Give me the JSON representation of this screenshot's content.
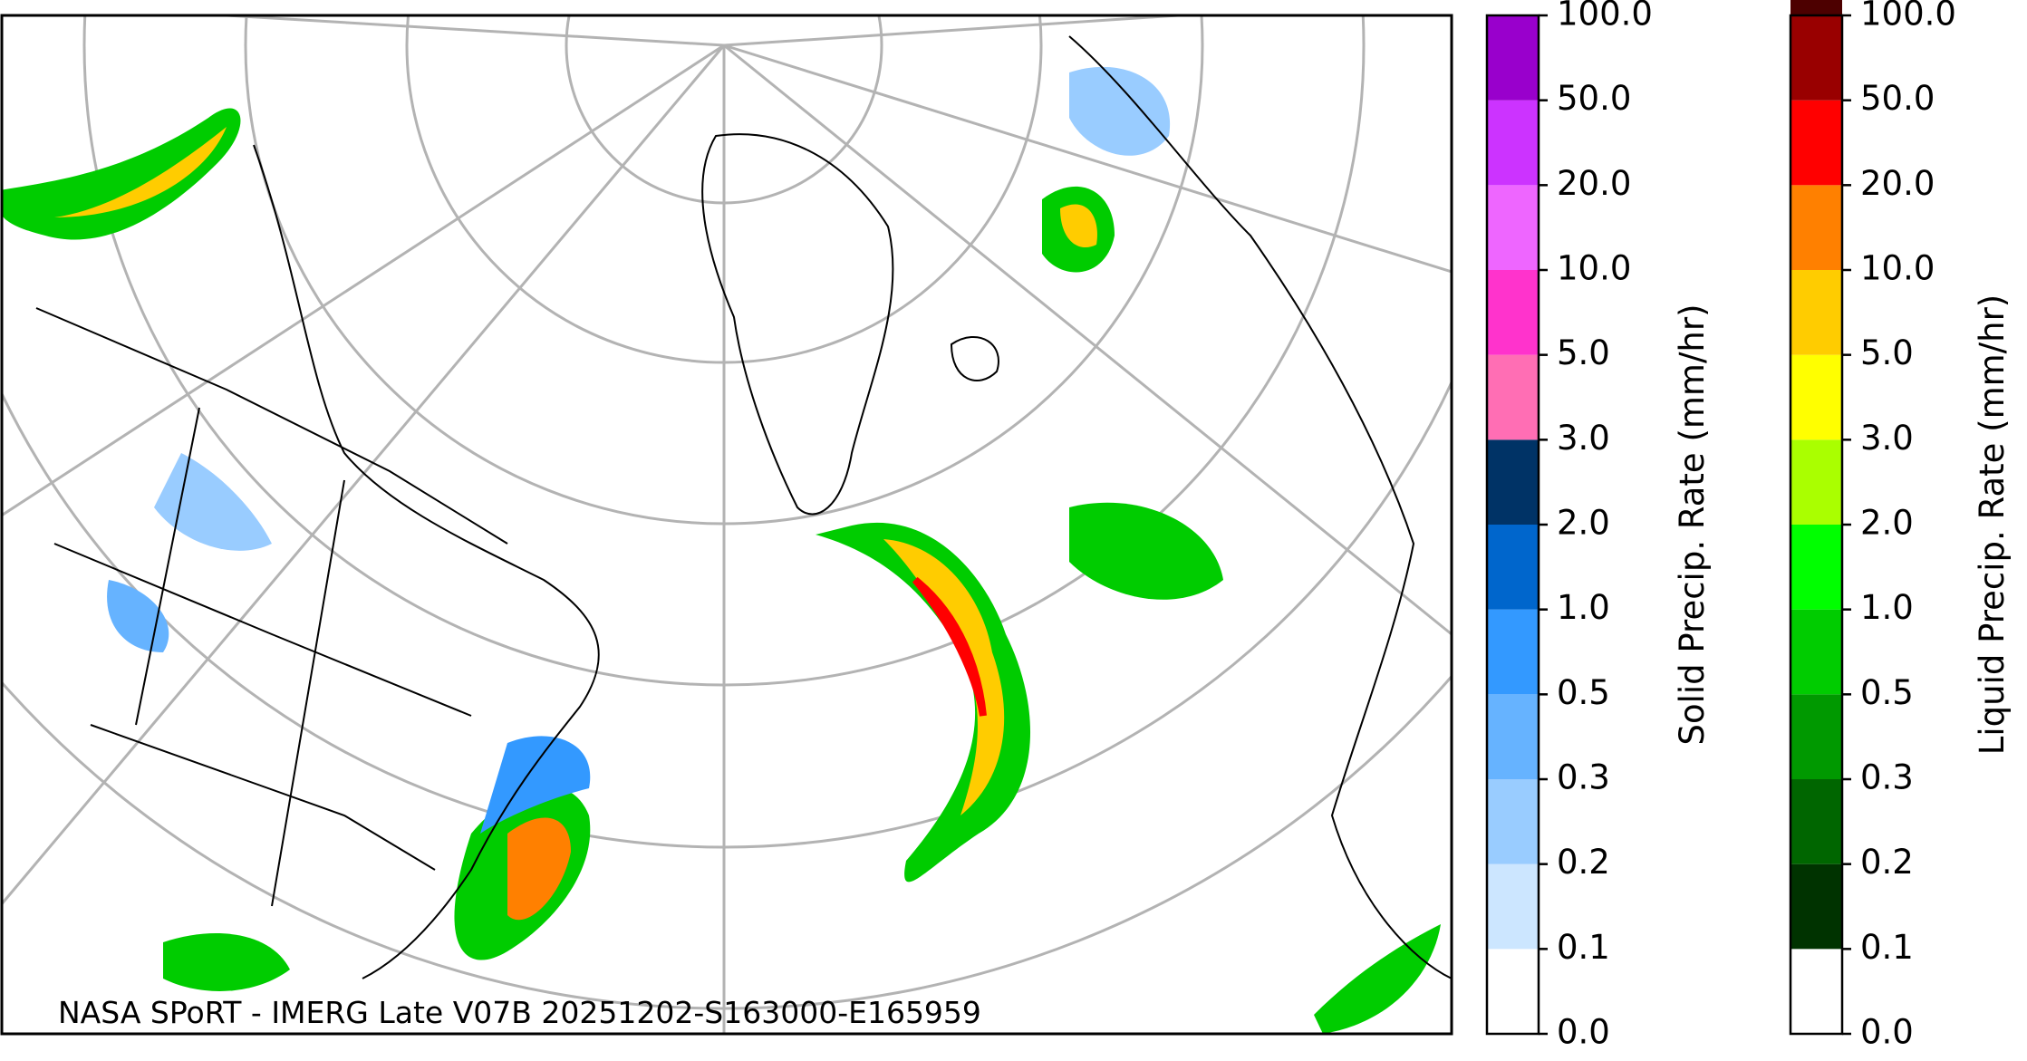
{
  "caption": "NASA SPoRT - IMERG Late V07B 20251202-S163000-E165959",
  "colorbars": [
    {
      "label": "Solid Precip. Rate (mm/hr)",
      "ticks": [
        {
          "value": 0,
          "label": "0.0"
        },
        {
          "value": 0.1,
          "label": "0.1"
        },
        {
          "value": 0.2,
          "label": "0.2"
        },
        {
          "value": 0.3,
          "label": "0.3"
        },
        {
          "value": 0.5,
          "label": "0.5"
        },
        {
          "value": 1,
          "label": "1.0"
        },
        {
          "value": 2,
          "label": "2.0"
        },
        {
          "value": 3,
          "label": "3.0"
        },
        {
          "value": 5,
          "label": "5.0"
        },
        {
          "value": 10,
          "label": "10.0"
        },
        {
          "value": 20,
          "label": "20.0"
        },
        {
          "value": 50,
          "label": "50.0"
        },
        {
          "value": 100,
          "label": "100.0"
        }
      ],
      "colors": [
        "#ffffff",
        "#cce6ff",
        "#99ccff",
        "#66b3ff",
        "#3399ff",
        "#0066cc",
        "#003366",
        "#ff6eb4",
        "#ff33cc",
        "#ee66ff",
        "#cc33ff",
        "#9900cc"
      ]
    },
    {
      "label": "Liquid Precip. Rate (mm/hr)",
      "ticks": [
        {
          "value": 0,
          "label": "0.0"
        },
        {
          "value": 0.1,
          "label": "0.1"
        },
        {
          "value": 0.2,
          "label": "0.2"
        },
        {
          "value": 0.3,
          "label": "0.3"
        },
        {
          "value": 0.5,
          "label": "0.5"
        },
        {
          "value": 1,
          "label": "1.0"
        },
        {
          "value": 2,
          "label": "2.0"
        },
        {
          "value": 3,
          "label": "3.0"
        },
        {
          "value": 5,
          "label": "5.0"
        },
        {
          "value": 10,
          "label": "10.0"
        },
        {
          "value": 20,
          "label": "20.0"
        },
        {
          "value": 50,
          "label": "50.0"
        },
        {
          "value": 100,
          "label": "100.0"
        }
      ],
      "colors": [
        "#ffffff",
        "#003300",
        "#006600",
        "#009900",
        "#00cc00",
        "#00ff00",
        "#aaff00",
        "#ffff00",
        "#ffcc00",
        "#ff8000",
        "#ff0000",
        "#990000",
        "#4d0000"
      ]
    }
  ]
}
